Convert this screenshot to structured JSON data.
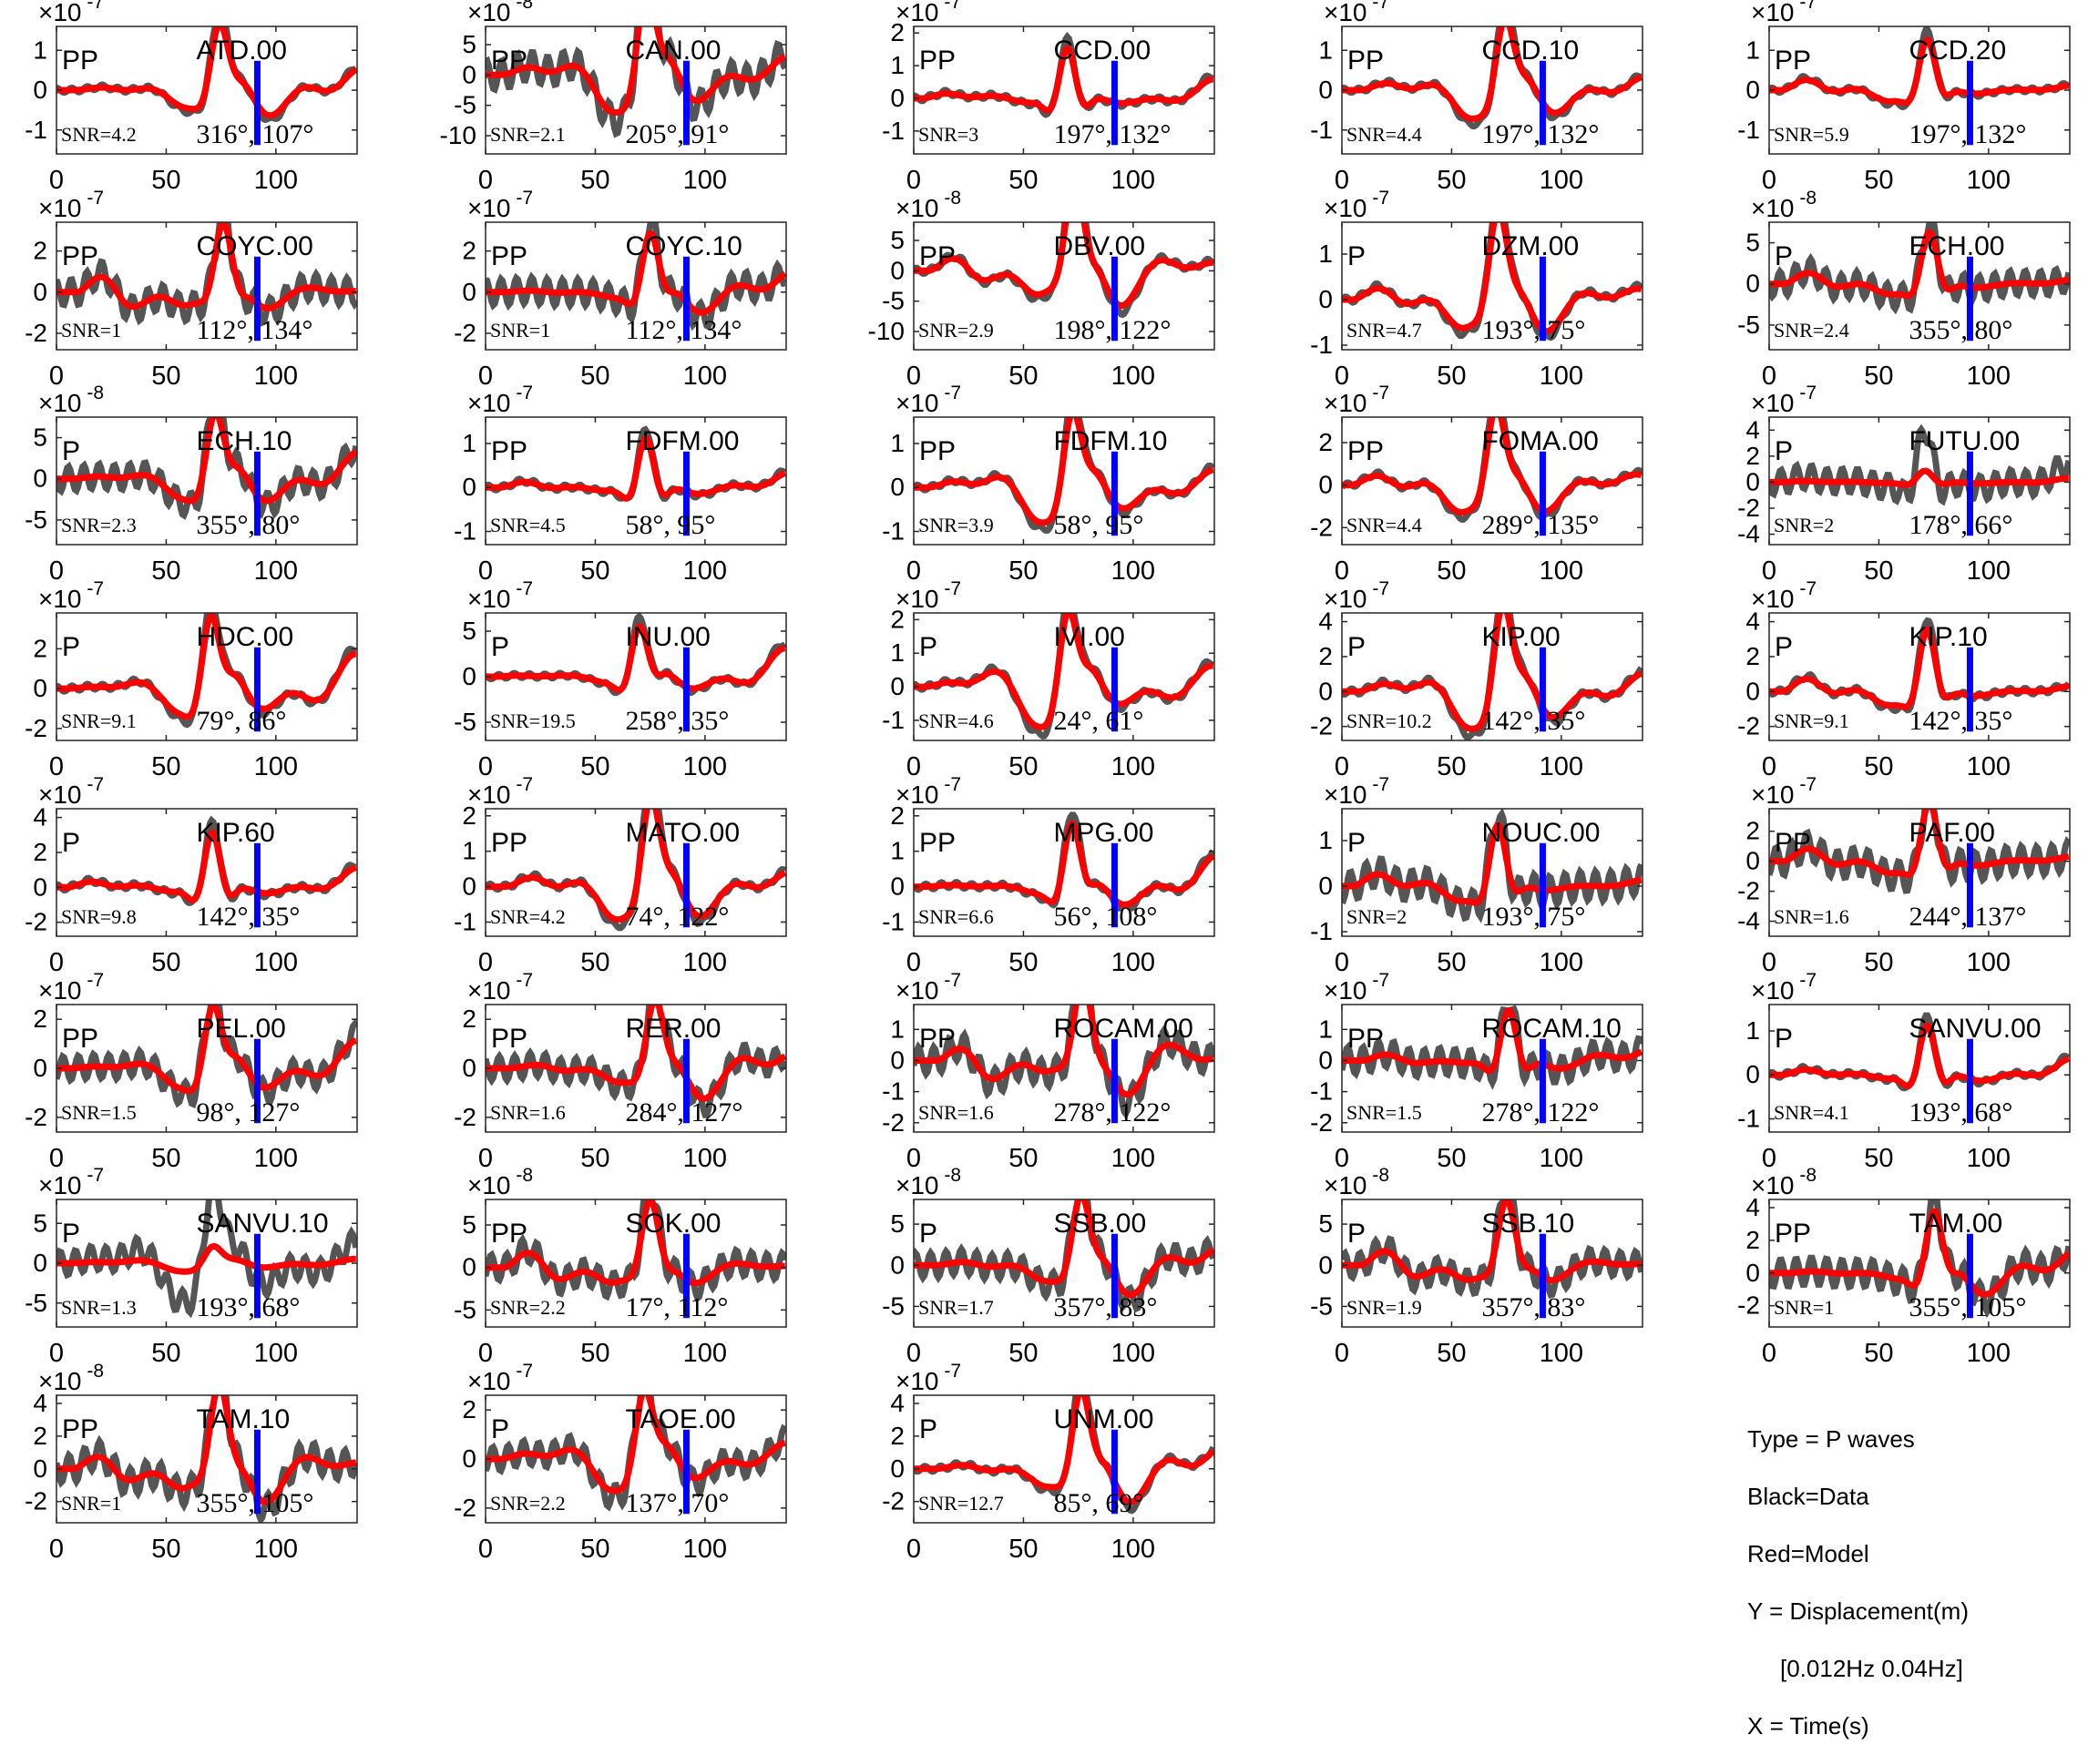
{
  "chart_data": {
    "type": "line",
    "series_legend": {
      "data": "Black=Data",
      "model": "Red=Model"
    },
    "colors": {
      "data": "#555555",
      "model": "#ff0000",
      "marker": "#0000ff",
      "axes": "#262626"
    },
    "x_ticks": [
      0,
      50,
      100
    ],
    "xlim": [
      0,
      137
    ],
    "notes": {
      "type": "Type = P waves",
      "black": "Black=Data",
      "red": "Red=Model",
      "y": "Y = Displacement(m)",
      "band": "[0.012Hz 0.04Hz]",
      "x": "X = Time(s)"
    },
    "panels": [
      {
        "station": "ATD.00",
        "phase": "PP",
        "snr": "SNR=4.2",
        "angles": "316°, 107°",
        "exp": "-7",
        "ticks": [
          1,
          0,
          -1
        ],
        "ylim": [
          -1.6,
          1.6
        ]
      },
      {
        "station": "CAN.00",
        "phase": "PP",
        "snr": "SNR=2.1",
        "angles": "205°, 91°",
        "exp": "-8",
        "ticks": [
          5,
          0,
          -5,
          -10
        ],
        "ylim": [
          -13,
          8
        ]
      },
      {
        "station": "CCD.00",
        "phase": "PP",
        "snr": "SNR=3",
        "angles": "197°, 132°",
        "exp": "-7",
        "ticks": [
          2,
          1,
          0,
          -1
        ],
        "ylim": [
          -1.7,
          2.2
        ]
      },
      {
        "station": "CCD.10",
        "phase": "PP",
        "snr": "SNR=4.4",
        "angles": "197°, 132°",
        "exp": "-7",
        "ticks": [
          1,
          0,
          -1
        ],
        "ylim": [
          -1.6,
          1.6
        ]
      },
      {
        "station": "CCD.20",
        "phase": "PP",
        "snr": "SNR=5.9",
        "angles": "197°, 132°",
        "exp": "-7",
        "ticks": [
          1,
          0,
          -1
        ],
        "ylim": [
          -1.6,
          1.6
        ]
      },
      {
        "station": "COYC.00",
        "phase": "PP",
        "snr": "SNR=1",
        "angles": "112°, 134°",
        "exp": "-7",
        "ticks": [
          2,
          0,
          -2
        ],
        "ylim": [
          -2.8,
          3.4
        ]
      },
      {
        "station": "COYC.10",
        "phase": "PP",
        "snr": "SNR=1",
        "angles": "112°, 134°",
        "exp": "-7",
        "ticks": [
          2,
          0,
          -2
        ],
        "ylim": [
          -2.8,
          3.4
        ]
      },
      {
        "station": "DBV.00",
        "phase": "PP",
        "snr": "SNR=2.9",
        "angles": "198°, 122°",
        "exp": "-8",
        "ticks": [
          5,
          0,
          -5,
          -10
        ],
        "ylim": [
          -13,
          8
        ]
      },
      {
        "station": "DZM.00",
        "phase": "P",
        "snr": "SNR=4.7",
        "angles": "193°, 75°",
        "exp": "-7",
        "ticks": [
          1,
          0,
          -1
        ],
        "ylim": [
          -1.1,
          1.7
        ]
      },
      {
        "station": "ECH.00",
        "phase": "P",
        "snr": "SNR=2.4",
        "angles": "355°, 80°",
        "exp": "-8",
        "ticks": [
          5,
          0,
          -5
        ],
        "ylim": [
          -8,
          7.5
        ]
      },
      {
        "station": "ECH.10",
        "phase": "P",
        "snr": "SNR=2.3",
        "angles": "355°, 80°",
        "exp": "-8",
        "ticks": [
          5,
          0,
          -5
        ],
        "ylim": [
          -8,
          7.5
        ]
      },
      {
        "station": "FDFM.00",
        "phase": "PP",
        "snr": "SNR=4.5",
        "angles": "58°, 95°",
        "exp": "-7",
        "ticks": [
          1,
          0,
          -1
        ],
        "ylim": [
          -1.3,
          1.6
        ]
      },
      {
        "station": "FDFM.10",
        "phase": "PP",
        "snr": "SNR=3.9",
        "angles": "58°, 95°",
        "exp": "-7",
        "ticks": [
          1,
          0,
          -1
        ],
        "ylim": [
          -1.3,
          1.6
        ]
      },
      {
        "station": "FOMA.00",
        "phase": "PP",
        "snr": "SNR=4.4",
        "angles": "289°, 135°",
        "exp": "-7",
        "ticks": [
          2,
          0,
          -2
        ],
        "ylim": [
          -2.8,
          3.2
        ]
      },
      {
        "station": "FUTU.00",
        "phase": "P",
        "snr": "SNR=2",
        "angles": "178°, 66°",
        "exp": "-7",
        "ticks": [
          4,
          2,
          0,
          -2,
          -4
        ],
        "ylim": [
          -4.8,
          5
        ]
      },
      {
        "station": "HDC.00",
        "phase": "P",
        "snr": "SNR=9.1",
        "angles": "79°, 86°",
        "exp": "-7",
        "ticks": [
          2,
          0,
          -2
        ],
        "ylim": [
          -2.6,
          3.8
        ]
      },
      {
        "station": "INU.00",
        "phase": "P",
        "snr": "SNR=19.5",
        "angles": "258°, 35°",
        "exp": "-7",
        "ticks": [
          5,
          0,
          -5
        ],
        "ylim": [
          -7,
          7
        ]
      },
      {
        "station": "IVI.00",
        "phase": "P",
        "snr": "SNR=4.6",
        "angles": "24°, 61°",
        "exp": "-7",
        "ticks": [
          2,
          1,
          0,
          -1
        ],
        "ylim": [
          -1.6,
          2.2
        ]
      },
      {
        "station": "KIP.00",
        "phase": "P",
        "snr": "SNR=10.2",
        "angles": "142°, 35°",
        "exp": "-7",
        "ticks": [
          4,
          2,
          0,
          -2
        ],
        "ylim": [
          -2.8,
          4.5
        ]
      },
      {
        "station": "KIP.10",
        "phase": "P",
        "snr": "SNR=9.1",
        "angles": "142°, 35°",
        "exp": "-7",
        "ticks": [
          4,
          2,
          0,
          -2
        ],
        "ylim": [
          -2.8,
          4.5
        ]
      },
      {
        "station": "KIP.60",
        "phase": "P",
        "snr": "SNR=9.8",
        "angles": "142°, 35°",
        "exp": "-7",
        "ticks": [
          4,
          2,
          0,
          -2
        ],
        "ylim": [
          -2.8,
          4.5
        ]
      },
      {
        "station": "MATO.00",
        "phase": "PP",
        "snr": "SNR=4.2",
        "angles": "74°, 122°",
        "exp": "-7",
        "ticks": [
          2,
          1,
          0,
          -1
        ],
        "ylim": [
          -1.4,
          2.2
        ]
      },
      {
        "station": "MPG.00",
        "phase": "PP",
        "snr": "SNR=6.6",
        "angles": "56°, 108°",
        "exp": "-7",
        "ticks": [
          2,
          1,
          0,
          -1
        ],
        "ylim": [
          -1.4,
          2.2
        ]
      },
      {
        "station": "NOUC.00",
        "phase": "P",
        "snr": "SNR=2",
        "angles": "193°, 75°",
        "exp": "-7",
        "ticks": [
          1,
          0,
          -1
        ],
        "ylim": [
          -1.1,
          1.7
        ]
      },
      {
        "station": "PAF.00",
        "phase": "PP",
        "snr": "SNR=1.6",
        "angles": "244°, 137°",
        "exp": "-7",
        "ticks": [
          2,
          0,
          -2,
          -4
        ],
        "ylim": [
          -5,
          3.5
        ]
      },
      {
        "station": "PEL.00",
        "phase": "PP",
        "snr": "SNR=1.5",
        "angles": "98°, 127°",
        "exp": "-7",
        "ticks": [
          2,
          0,
          -2
        ],
        "ylim": [
          -2.6,
          2.6
        ]
      },
      {
        "station": "RER.00",
        "phase": "PP",
        "snr": "SNR=1.6",
        "angles": "284°, 127°",
        "exp": "-7",
        "ticks": [
          2,
          0,
          -2
        ],
        "ylim": [
          -2.6,
          2.6
        ]
      },
      {
        "station": "ROCAM.00",
        "phase": "PP",
        "snr": "SNR=1.6",
        "angles": "278°, 122°",
        "exp": "-7",
        "ticks": [
          1,
          0,
          -1,
          -2
        ],
        "ylim": [
          -2.3,
          1.8
        ]
      },
      {
        "station": "ROCAM.10",
        "phase": "PP",
        "snr": "SNR=1.5",
        "angles": "278°, 122°",
        "exp": "-7",
        "ticks": [
          1,
          0,
          -1,
          -2
        ],
        "ylim": [
          -2.3,
          1.8
        ]
      },
      {
        "station": "SANVU.00",
        "phase": "P",
        "snr": "SNR=4.1",
        "angles": "193°, 68°",
        "exp": "-7",
        "ticks": [
          1,
          0,
          -1
        ],
        "ylim": [
          -1.3,
          1.6
        ]
      },
      {
        "station": "SANVU.10",
        "phase": "P",
        "snr": "SNR=1.3",
        "angles": "193°, 68°",
        "exp": "-7",
        "ticks": [
          5,
          0,
          -5
        ],
        "ylim": [
          -8,
          8
        ]
      },
      {
        "station": "SOK.00",
        "phase": "PP",
        "snr": "SNR=2.2",
        "angles": "17°, 112°",
        "exp": "-8",
        "ticks": [
          5,
          0,
          -5
        ],
        "ylim": [
          -7,
          8
        ]
      },
      {
        "station": "SSB.00",
        "phase": "P",
        "snr": "SNR=1.7",
        "angles": "357°, 83°",
        "exp": "-8",
        "ticks": [
          5,
          0,
          -5
        ],
        "ylim": [
          -7.5,
          8
        ]
      },
      {
        "station": "SSB.10",
        "phase": "P",
        "snr": "SNR=1.9",
        "angles": "357°, 83°",
        "exp": "-8",
        "ticks": [
          5,
          0,
          -5
        ],
        "ylim": [
          -7.5,
          8
        ]
      },
      {
        "station": "TAM.00",
        "phase": "PP",
        "snr": "SNR=1",
        "angles": "355°, 105°",
        "exp": "-8",
        "ticks": [
          4,
          2,
          0,
          -2
        ],
        "ylim": [
          -3.3,
          4.5
        ]
      },
      {
        "station": "TAM.10",
        "phase": "PP",
        "snr": "SNR=1",
        "angles": "355°, 105°",
        "exp": "-8",
        "ticks": [
          4,
          2,
          0,
          -2
        ],
        "ylim": [
          -3.3,
          4.5
        ]
      },
      {
        "station": "TAOE.00",
        "phase": "P",
        "snr": "SNR=2.2",
        "angles": "137°, 70°",
        "exp": "-7",
        "ticks": [
          2,
          0,
          -2
        ],
        "ylim": [
          -2.6,
          2.6
        ]
      },
      {
        "station": "UNM.00",
        "phase": "P",
        "snr": "SNR=12.7",
        "angles": "85°, 69°",
        "exp": "-7",
        "ticks": [
          4,
          2,
          0,
          -2
        ],
        "ylim": [
          -3.3,
          4.5
        ]
      }
    ]
  }
}
